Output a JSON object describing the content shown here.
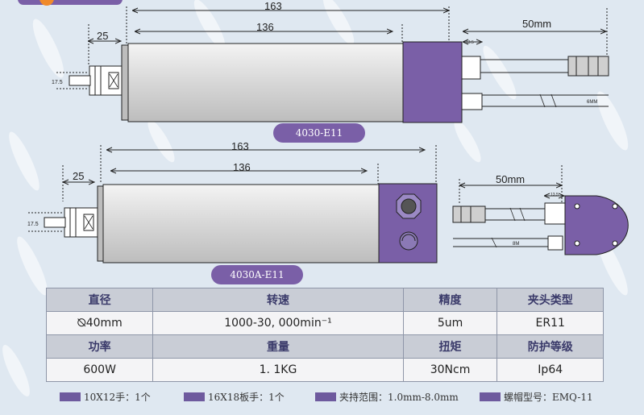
{
  "diagram1": {
    "dim_total": "163",
    "dim_body": "136",
    "dim_nose": "25",
    "dim_dia": "17.5",
    "dim_cable": "50mm",
    "dim_small": "13.5",
    "cable_label": "6MM",
    "model_tag": "4030-E11"
  },
  "diagram2": {
    "dim_total": "163",
    "dim_body": "136",
    "dim_nose": "25",
    "dim_dia": "17.5",
    "dim_cable": "50mm",
    "dim_small": "13.5",
    "cable_label": "8M",
    "model_tag": "4030A-E11"
  },
  "spec_table": {
    "row1_headers": [
      "直径",
      "转速",
      "精度",
      "夹头类型"
    ],
    "row1_values": [
      "⦰40mm",
      "1000-30, 000min⁻¹",
      "5um",
      "ER11"
    ],
    "row2_headers": [
      "功率",
      "重量",
      "扭矩",
      "防护等级"
    ],
    "row2_values": [
      "600W",
      "1. 1KG",
      "30Ncm",
      "Ip64"
    ]
  },
  "legend": [
    "10X12手：1个",
    "16X18板手：1个",
    "夹持范围：1.0mm-8.0mm",
    "螺帽型号：EMQ-11"
  ],
  "colors": {
    "accent_purple": "#7a5fa7",
    "body_gray": "#dcdcdc",
    "background": "#dfe8f1"
  }
}
